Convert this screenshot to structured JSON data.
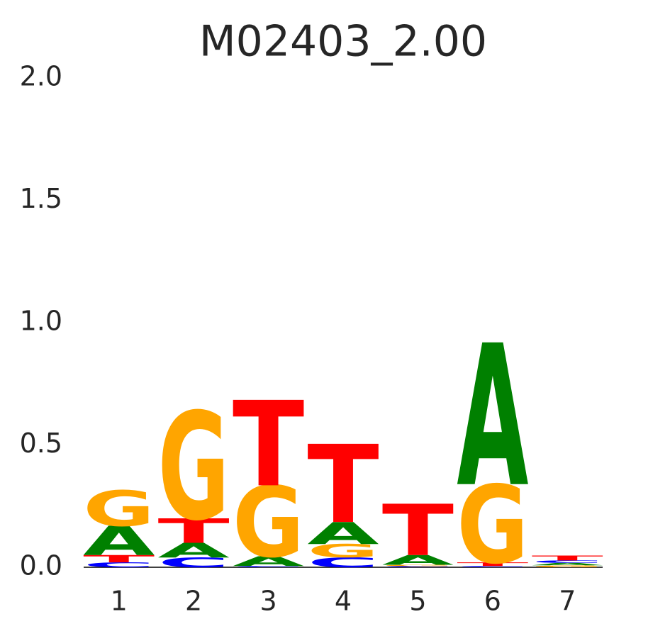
{
  "chart_data": {
    "type": "logo",
    "title": "M02403_2.00",
    "categories": [
      "1",
      "2",
      "3",
      "4",
      "5",
      "6",
      "7"
    ],
    "series": [
      {
        "name": "A",
        "color": "#008000",
        "values": [
          0.12,
          0.06,
          0.04,
          0.09,
          0.04,
          0.58,
          0.01
        ]
      },
      {
        "name": "C",
        "color": "#0000ff",
        "values": [
          0.02,
          0.04,
          0.005,
          0.04,
          0.005,
          0.005,
          0.01
        ]
      },
      {
        "name": "G",
        "color": "#ffa500",
        "values": [
          0.145,
          0.44,
          0.29,
          0.055,
          0.005,
          0.32,
          0.008
        ]
      },
      {
        "name": "T",
        "color": "#ff0000",
        "values": [
          0.03,
          0.1,
          0.35,
          0.32,
          0.21,
          0.015,
          0.02
        ]
      }
    ],
    "ylim": [
      0,
      2
    ],
    "yticks": [
      {
        "value": 0,
        "label": "0.0"
      },
      {
        "value": 0.5,
        "label": "0.5"
      },
      {
        "value": 1,
        "label": "1.0"
      },
      1.5,
      {
        "value": 2,
        "label": "2.0"
      }
    ]
  }
}
